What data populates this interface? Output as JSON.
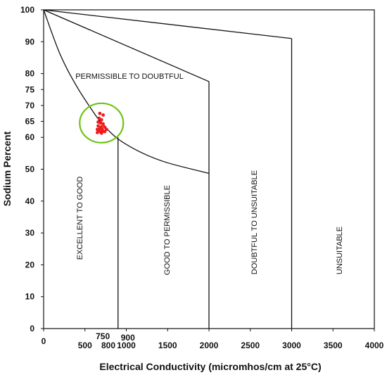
{
  "chart_data": {
    "type": "scatter",
    "xlabel": "Electrical Conductivity (micromhos/cm at 25°C)",
    "ylabel": "Sodium Percent",
    "xlim": [
      0,
      4000
    ],
    "ylim": [
      0,
      100
    ],
    "x_ticks": [
      {
        "value": 0,
        "label": "0"
      },
      {
        "value": 500,
        "label": "500"
      },
      {
        "value": 750,
        "label": "750"
      },
      {
        "value": 800,
        "label": "800"
      },
      {
        "value": 900,
        "label": "900"
      },
      {
        "value": 1000,
        "label": "1000"
      },
      {
        "value": 1500,
        "label": "1500"
      },
      {
        "value": 2000,
        "label": "2000"
      },
      {
        "value": 2500,
        "label": "2500"
      },
      {
        "value": 3000,
        "label": "3000"
      },
      {
        "value": 3500,
        "label": "3500"
      },
      {
        "value": 4000,
        "label": "4000"
      }
    ],
    "y_ticks": [
      {
        "value": 0,
        "label": "0"
      },
      {
        "value": 10,
        "label": "10"
      },
      {
        "value": 20,
        "label": "20"
      },
      {
        "value": 30,
        "label": "30"
      },
      {
        "value": 40,
        "label": "40"
      },
      {
        "value": 50,
        "label": "50"
      },
      {
        "value": 60,
        "label": "60"
      },
      {
        "value": 65,
        "label": "65"
      },
      {
        "value": 70,
        "label": "70"
      },
      {
        "value": 75,
        "label": "75"
      },
      {
        "value": 80,
        "label": "80"
      },
      {
        "value": 90,
        "label": "90"
      },
      {
        "value": 100,
        "label": "100"
      }
    ],
    "boundaries": [
      {
        "name": "excellent-good-curve",
        "points": [
          [
            0,
            100
          ],
          [
            200,
            86
          ],
          [
            400,
            76
          ],
          [
            600,
            68
          ],
          [
            700,
            64.5
          ],
          [
            900,
            59.5
          ],
          [
            1200,
            55
          ],
          [
            1500,
            52
          ],
          [
            2000,
            48.7
          ]
        ]
      },
      {
        "name": "permissible-doubtful-line",
        "points": [
          [
            0,
            100
          ],
          [
            2000,
            77.5
          ]
        ]
      },
      {
        "name": "doubtful-unsuitable-line",
        "points": [
          [
            0,
            100
          ],
          [
            3000,
            91
          ]
        ]
      },
      {
        "name": "ec-900-divider",
        "points": [
          [
            900,
            60
          ],
          [
            900,
            0
          ]
        ]
      },
      {
        "name": "ec-2000-divider",
        "points": [
          [
            2000,
            77.5
          ],
          [
            2000,
            0
          ]
        ]
      },
      {
        "name": "ec-3000-divider",
        "points": [
          [
            3000,
            91
          ],
          [
            3000,
            0
          ]
        ]
      }
    ],
    "regions": [
      {
        "label": "PERMISSIBLE TO DOUBTFUL",
        "orientation": "horizontal"
      },
      {
        "label": "EXCELLENT TO GOOD",
        "orientation": "vertical"
      },
      {
        "label": "GOOD TO PERMISSIBLE",
        "orientation": "vertical"
      },
      {
        "label": "DOUBTFUL TO UNSUITABLE",
        "orientation": "vertical"
      },
      {
        "label": "UNSUITABLE",
        "orientation": "vertical"
      }
    ],
    "series": [
      {
        "color": "#ee1c1c",
        "points": [
          [
            680,
            67.5
          ],
          [
            720,
            67
          ],
          [
            670,
            66
          ],
          [
            700,
            65.5
          ],
          [
            660,
            64.8
          ],
          [
            690,
            64.5
          ],
          [
            720,
            64.2
          ],
          [
            660,
            63.6
          ],
          [
            700,
            63.3
          ],
          [
            740,
            63.2
          ],
          [
            680,
            62.8
          ],
          [
            650,
            62.5
          ],
          [
            710,
            62.4
          ],
          [
            760,
            62.5
          ],
          [
            670,
            62
          ],
          [
            720,
            61.9
          ],
          [
            690,
            61.7
          ],
          [
            740,
            61.8
          ],
          [
            650,
            61.5
          ],
          [
            700,
            61.3
          ]
        ]
      }
    ],
    "highlight": {
      "shape": "ellipse",
      "color": "#6cc417",
      "center": [
        700,
        64.5
      ],
      "rx": 260,
      "ry": 6
    }
  }
}
